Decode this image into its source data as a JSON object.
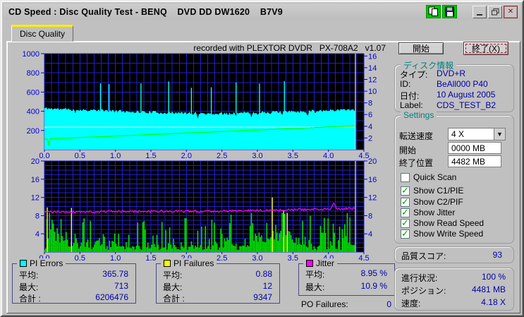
{
  "window": {
    "title": "CD Speed : Disc Quality Test - BENQ    DVD DD DW1620    B7V9"
  },
  "tab": {
    "label": "Disc Quality"
  },
  "buttons": {
    "start": "開始",
    "exit": "終了(X)"
  },
  "disc_info": {
    "title": "ディスク情報",
    "rows": [
      {
        "label": "タイプ:",
        "value": "DVD+R"
      },
      {
        "label": "ID:",
        "value": "BeAll000 P40"
      },
      {
        "label": "日付:",
        "value": "10 August 2005"
      },
      {
        "label": "Label:",
        "value": "CDS_TEST_B2"
      }
    ]
  },
  "settings": {
    "title": "Settings",
    "speed_label": "転送速度",
    "speed_value": "4 X",
    "start_label": "開始",
    "start_value": "0000 MB",
    "end_label": "終了位置",
    "end_value": "4482 MB",
    "checkboxes": [
      {
        "label": "Quick Scan",
        "checked": false
      },
      {
        "label": "Show C1/PIE",
        "checked": true
      },
      {
        "label": "Show C2/PIF",
        "checked": true
      },
      {
        "label": "Show Jitter",
        "checked": true
      },
      {
        "label": "Show Read Speed",
        "checked": true
      },
      {
        "label": "Show Write Speed",
        "checked": true
      }
    ]
  },
  "score": {
    "label": "品質スコア:",
    "value": "93"
  },
  "progress": {
    "rows": [
      {
        "label": "進行状況:",
        "value": "100 %"
      },
      {
        "label": "ポジション:",
        "value": "4481 MB"
      },
      {
        "label": "速度:",
        "value": "4.18 X"
      }
    ]
  },
  "legends": {
    "pi_errors": {
      "title": "PI Errors",
      "color": "#00ffff",
      "rows": [
        {
          "label": "平均:",
          "value": "365.78"
        },
        {
          "label": "最大:",
          "value": "713"
        },
        {
          "label": "合計 :",
          "value": "6206476"
        }
      ]
    },
    "pi_failures": {
      "title": "PI Failures",
      "color": "#ffff00",
      "rows": [
        {
          "label": "平均:",
          "value": "0.88"
        },
        {
          "label": "最大:",
          "value": "12"
        },
        {
          "label": "合計 :",
          "value": "9347"
        }
      ]
    },
    "jitter": {
      "title": "Jitter",
      "color": "#ff00ff",
      "rows": [
        {
          "label": "平均:",
          "value": "8.95 %"
        },
        {
          "label": "最大:",
          "value": "10.9 %"
        }
      ]
    },
    "po_failures": {
      "label": "PO Failures:",
      "value": "0"
    }
  },
  "colors": {
    "plot_bg": "#000000",
    "grid": "#2121c8",
    "axis_text": "#0000dd",
    "end_marker": "#c9c9c9",
    "value_text": "#0000a8",
    "group_title": "#008080"
  },
  "chart_data": [
    {
      "type": "area",
      "title": "PI Errors / Speed",
      "annotation": "recorded with PLEXTOR DVDR   PX-708A2   v1.07",
      "x_range": [
        0,
        4.5
      ],
      "x_ticks": [
        "0.0",
        "0.5",
        "1.0",
        "1.5",
        "2.0",
        "2.5",
        "3.0",
        "3.5",
        "4.0",
        "4.5"
      ],
      "y_left": {
        "min": 0,
        "max": 1000,
        "ticks": [
          200,
          400,
          600,
          800,
          1000
        ]
      },
      "y_right": {
        "min": 0,
        "max": 16.4,
        "ticks": [
          2,
          4,
          6,
          8,
          10,
          12,
          14,
          16
        ]
      },
      "grid_x_step": 0.1,
      "grid_y_step": 100,
      "data_end_x": 4.38,
      "series": [
        {
          "name": "PI Errors",
          "kind": "noisy-area",
          "color": "#00ffff",
          "seed": 11,
          "noise": 16,
          "dip_chance": 0.05,
          "dip_depth": 45,
          "baseline": [
            [
              0,
              432
            ],
            [
              0.3,
              420
            ],
            [
              0.8,
              408
            ],
            [
              1.2,
              398
            ],
            [
              1.6,
              388
            ],
            [
              2.0,
              380
            ],
            [
              2.4,
              376
            ],
            [
              2.8,
              382
            ],
            [
              3.2,
              390
            ],
            [
              3.6,
              398
            ],
            [
              4.0,
              410
            ],
            [
              4.38,
              422
            ]
          ],
          "spikes": [
            [
              0.79,
              690
            ],
            [
              0.91,
              683
            ],
            [
              1.36,
              690
            ],
            [
              1.75,
              710
            ],
            [
              2.07,
              645
            ],
            [
              2.35,
              650
            ],
            [
              2.7,
              700
            ],
            [
              3.03,
              688
            ],
            [
              3.38,
              713
            ]
          ]
        },
        {
          "name": "Write Speed",
          "kind": "line",
          "color": "#e8e8e8",
          "points": [
            [
              0,
              234
            ],
            [
              4.38,
              234
            ]
          ]
        },
        {
          "name": "Read Speed",
          "kind": "noisy-line",
          "color": "#00ff00",
          "seed": 5,
          "noise": 1.5,
          "trend": [
            [
              0,
              112
            ],
            [
              0.045,
              110
            ],
            [
              0.06,
              38
            ],
            [
              0.075,
              113
            ],
            [
              4.38,
              248
            ]
          ]
        }
      ]
    },
    {
      "type": "bar",
      "title": "PI Failures / Jitter",
      "x_range": [
        0,
        4.5
      ],
      "x_ticks": [
        "0.0",
        "0.5",
        "1.0",
        "1.5",
        "2.0",
        "2.5",
        "3.0",
        "3.5",
        "4.0",
        "4.5"
      ],
      "y_left": {
        "min": 0,
        "max": 20,
        "ticks": [
          4,
          8,
          12,
          16,
          20
        ]
      },
      "y_right": {
        "min": 0,
        "max": 20,
        "ticks": [
          4,
          8,
          12,
          16,
          20
        ]
      },
      "grid_x_step": 0.1,
      "grid_y_step": 1,
      "data_end_x": 4.38,
      "series": [
        {
          "name": "C2/PIF",
          "kind": "random-bars",
          "color": "#00dd00",
          "seed": 23,
          "base": 1.0,
          "pow": 4.0,
          "amp": 7.0,
          "humps": [
            [
              0.1,
              0.03,
              4.5
            ],
            [
              0.25,
              0.1,
              2.0
            ],
            [
              0.75,
              0.04,
              2.5
            ],
            [
              2.6,
              0.03,
              3.5
            ],
            [
              2.95,
              0.04,
              3.8
            ],
            [
              3.05,
              0.04,
              2.5
            ],
            [
              3.35,
              0.15,
              4.2
            ],
            [
              4.3,
              0.05,
              1.5
            ]
          ]
        },
        {
          "name": "PI Failures",
          "kind": "spikes",
          "color": "#ffff00",
          "spikes": [
            [
              0.04,
              9.8
            ],
            [
              0.38,
              9.7
            ],
            [
              3.21,
              12
            ],
            [
              3.37,
              9.2
            ],
            [
              3.42,
              8.6
            ]
          ]
        },
        {
          "name": "Jitter",
          "kind": "noisy-line",
          "color": "#ff00ff",
          "seed": 41,
          "noise": 0.25,
          "trend": [
            [
              0,
              8.8
            ],
            [
              1.0,
              8.9
            ],
            [
              2.2,
              8.95
            ],
            [
              3.0,
              9.1
            ],
            [
              3.6,
              9.3
            ],
            [
              4.1,
              9.5
            ],
            [
              4.38,
              9.55
            ]
          ],
          "bumps": [
            [
              4.07,
              0.02,
              1.3
            ]
          ]
        }
      ]
    }
  ]
}
